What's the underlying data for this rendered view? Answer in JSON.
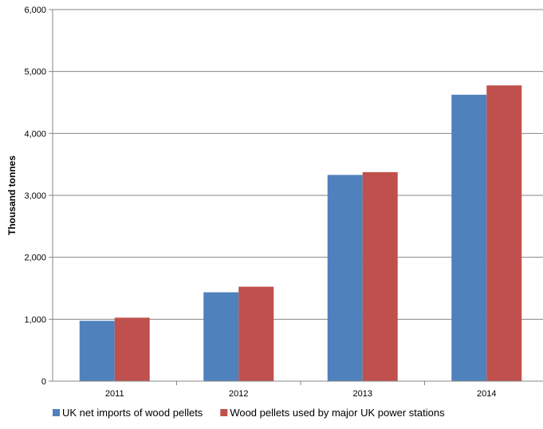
{
  "chart_data": {
    "type": "bar",
    "categories": [
      "2011",
      "2012",
      "2013",
      "2014"
    ],
    "series": [
      {
        "name": "UK net imports of wood pellets",
        "values": [
          975,
          1435,
          3330,
          4625
        ],
        "color": "#4F81BD"
      },
      {
        "name": "Wood pellets used by major UK power stations",
        "values": [
          1025,
          1525,
          3375,
          4775
        ],
        "color": "#C0504D"
      }
    ],
    "title": "",
    "xlabel": "",
    "ylabel": "Thousand tonnes",
    "ylim": [
      0,
      6000
    ],
    "yticks": [
      "0",
      "1,000",
      "2,000",
      "3,000",
      "4,000",
      "5,000",
      "6,000"
    ],
    "grid": true,
    "legend_position": "bottom"
  }
}
